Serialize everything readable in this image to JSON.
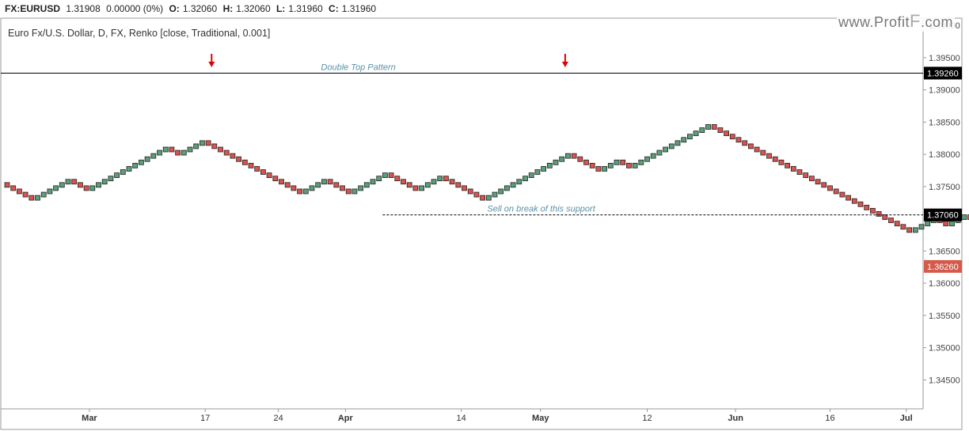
{
  "header": {
    "symbol": "FX:EURUSD",
    "last": "1.31908",
    "change": "0.00000 (0%)",
    "o_label": "O:",
    "o_value": "1.32060",
    "h_label": "H:",
    "h_value": "1.32060",
    "l_label": "L:",
    "l_value": "1.31960",
    "c_label": "C:",
    "c_value": "1.31960"
  },
  "watermark": {
    "text": "www.Profit",
    "f": "F",
    "suffix": ".com"
  },
  "chart_data": {
    "type": "renko",
    "title": "Euro Fx/U.S. Dollar, D, FX, Renko [close, Traditional, 0.001]",
    "brick_size": 0.0005,
    "start_price": 1.3755,
    "moves": [
      -5,
      6,
      -3,
      13,
      -2,
      4,
      -16,
      4,
      -4,
      6,
      -5,
      4,
      -7,
      14,
      -5,
      3,
      -2,
      13,
      -33,
      4,
      -2,
      3,
      -2,
      6,
      -15,
      3,
      -2,
      12,
      -4
    ],
    "ylim": [
      1.3405,
      1.401
    ],
    "yticks": [
      "1.40000",
      "1.39500",
      "1.39000",
      "1.38500",
      "1.38000",
      "1.37500",
      "1.37000",
      "1.36500",
      "1.36000",
      "1.35500",
      "1.35000",
      "1.34500"
    ],
    "xticks": [
      {
        "label": "Mar",
        "brick": 13.5,
        "bold": true
      },
      {
        "label": "17",
        "brick": 32.5,
        "bold": false
      },
      {
        "label": "24",
        "brick": 44.5,
        "bold": false
      },
      {
        "label": "Apr",
        "brick": 55.5,
        "bold": true
      },
      {
        "label": "14",
        "brick": 74.5,
        "bold": false
      },
      {
        "label": "May",
        "brick": 87.5,
        "bold": true
      },
      {
        "label": "12",
        "brick": 105,
        "bold": false
      },
      {
        "label": "Jun",
        "brick": 119.5,
        "bold": true
      },
      {
        "label": "16",
        "brick": 135,
        "bold": false
      },
      {
        "label": "Jul",
        "brick": 147.5,
        "bold": true
      }
    ],
    "lines": [
      {
        "price": 1.3926,
        "label_value": "1.39260",
        "from_brick": 0,
        "style": "solid",
        "annotation": "Double Top Pattern",
        "annotation_brick": 58
      },
      {
        "price": 1.3706,
        "label_value": "1.37060",
        "from_brick": 62,
        "style": "dashed",
        "annotation": "Sell on break of this support",
        "annotation_brick": 88
      }
    ],
    "current_price": {
      "price": 1.3626,
      "label_value": "1.36260"
    },
    "arrows": [
      {
        "brick": 34
      },
      {
        "brick": 92
      }
    ],
    "colors": {
      "up": "#5b9e7a",
      "down": "#d9534f",
      "border": "#222222",
      "line": "#000000",
      "price_tag": "#d45a4a",
      "annotation": "#5a90a8"
    }
  }
}
